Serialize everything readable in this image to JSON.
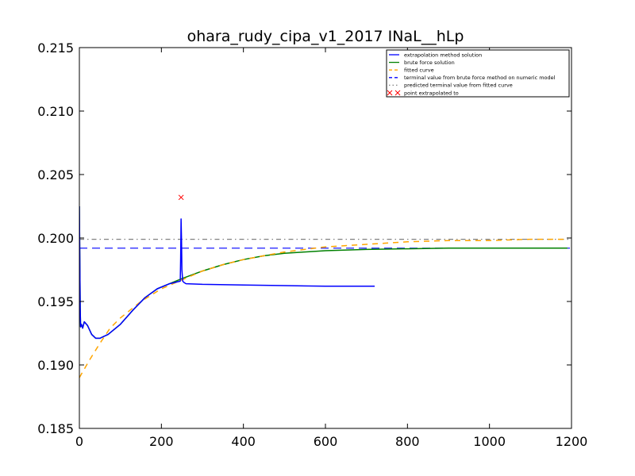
{
  "chart_data": {
    "type": "line",
    "title": "ohara_rudy_cipa_v1_2017 INaL__hLp",
    "xlabel": "",
    "ylabel": "",
    "xlim": [
      0,
      1200
    ],
    "ylim": [
      0.185,
      0.215
    ],
    "x_ticks": [
      0,
      200,
      400,
      600,
      800,
      1000,
      1200
    ],
    "x_tick_labels": [
      "0",
      "200",
      "400",
      "600",
      "800",
      "1000",
      "1200"
    ],
    "y_ticks": [
      0.185,
      0.19,
      0.195,
      0.2,
      0.205,
      0.21,
      0.215
    ],
    "y_tick_labels": [
      "0.185",
      "0.190",
      "0.195",
      "0.200",
      "0.205",
      "0.210",
      "0.215"
    ],
    "grid": false,
    "legend_position": "top-right",
    "series": [
      {
        "name": "extrapolation method solution",
        "color": "#0000ff",
        "style": "solid",
        "x": [
          0,
          1,
          2,
          3,
          5,
          8,
          12,
          20,
          30,
          40,
          50,
          70,
          100,
          130,
          160,
          190,
          220,
          246,
          247,
          248,
          249,
          250,
          252,
          255,
          260,
          300,
          400,
          500,
          600,
          720
        ],
        "y": [
          0.2025,
          0.1985,
          0.1945,
          0.193,
          0.1932,
          0.1929,
          0.1934,
          0.1931,
          0.1924,
          0.1921,
          0.1921,
          0.1924,
          0.1932,
          0.1943,
          0.1953,
          0.196,
          0.1964,
          0.1966,
          0.1985,
          0.2015,
          0.2,
          0.1975,
          0.1966,
          0.1965,
          0.1964,
          0.19635,
          0.1963,
          0.19625,
          0.1962,
          0.1962
        ]
      },
      {
        "name": "brute force solution",
        "color": "#008000",
        "style": "solid",
        "x": [
          0,
          1,
          2,
          3,
          5,
          8,
          12,
          20,
          30,
          40,
          50,
          70,
          100,
          130,
          160,
          190,
          220,
          250,
          300,
          350,
          400,
          450,
          500,
          550,
          600,
          700,
          800,
          900,
          1000,
          1100,
          1190
        ],
        "y": [
          0.2025,
          0.1985,
          0.1945,
          0.193,
          0.1932,
          0.1929,
          0.1934,
          0.1931,
          0.1924,
          0.1921,
          0.1921,
          0.1924,
          0.1932,
          0.1943,
          0.1953,
          0.196,
          0.1964,
          0.1968,
          0.1974,
          0.1979,
          0.1983,
          0.1986,
          0.1988,
          0.1989,
          0.199,
          0.1991,
          0.19915,
          0.1992,
          0.1992,
          0.1992,
          0.1992
        ]
      },
      {
        "name": "fitted curve",
        "color": "#ffa500",
        "style": "dashed",
        "x": [
          0,
          25,
          50,
          75,
          100,
          150,
          200,
          250,
          300,
          350,
          400,
          450,
          500,
          600,
          700,
          800,
          900,
          1000,
          1100,
          1190
        ],
        "y": [
          0.189,
          0.1904,
          0.1917,
          0.1929,
          0.1937,
          0.195,
          0.196,
          0.1967,
          0.1974,
          0.1979,
          0.1983,
          0.1986,
          0.1989,
          0.1993,
          0.1995,
          0.1997,
          0.1998,
          0.1998,
          0.1999,
          0.1999
        ]
      },
      {
        "name": "terminal value from brute force method on numeric model",
        "color": "#0000ff",
        "style": "dashed-long",
        "y_constant": 0.1992
      },
      {
        "name": "predicted terminal value from fitted curve",
        "color": "#808080",
        "style": "dashdot",
        "y_constant": 0.1999
      },
      {
        "name": "point extrapolated to",
        "color": "#ff0000",
        "style": "marker-x",
        "x": [
          248
        ],
        "y": [
          0.2032
        ]
      }
    ]
  }
}
